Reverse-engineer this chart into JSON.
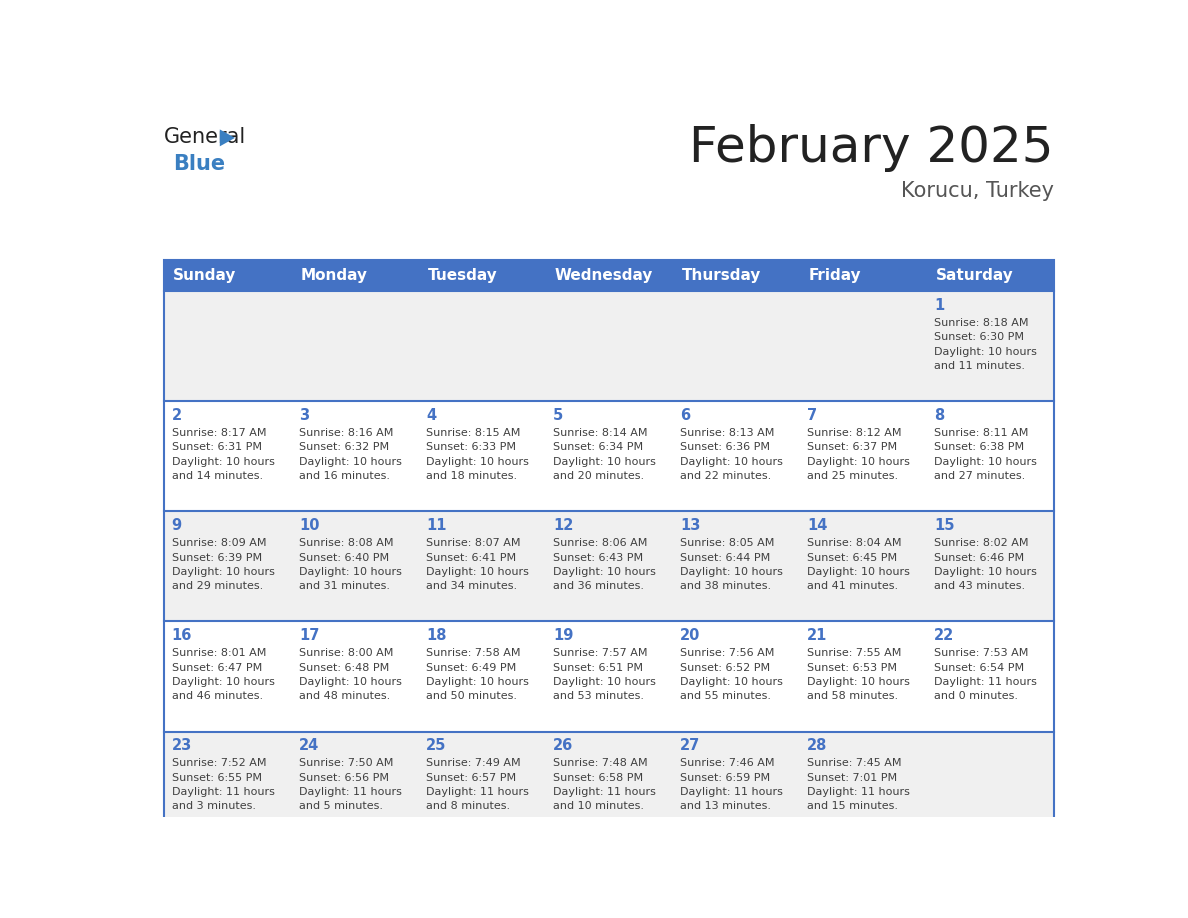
{
  "title": "February 2025",
  "subtitle": "Korucu, Turkey",
  "days_of_week": [
    "Sunday",
    "Monday",
    "Tuesday",
    "Wednesday",
    "Thursday",
    "Friday",
    "Saturday"
  ],
  "header_bg": "#4472C4",
  "header_text": "#FFFFFF",
  "row_bg_odd": "#F0F0F0",
  "row_bg_even": "#FFFFFF",
  "cell_border": "#4472C4",
  "day_num_color": "#4472C4",
  "text_color": "#404040",
  "title_color": "#222222",
  "subtitle_color": "#555555",
  "calendar_data": [
    {
      "day": 1,
      "col": 6,
      "row": 0,
      "sunrise": "8:18 AM",
      "sunset": "6:30 PM",
      "daylight": "10 hours and 11 minutes."
    },
    {
      "day": 2,
      "col": 0,
      "row": 1,
      "sunrise": "8:17 AM",
      "sunset": "6:31 PM",
      "daylight": "10 hours and 14 minutes."
    },
    {
      "day": 3,
      "col": 1,
      "row": 1,
      "sunrise": "8:16 AM",
      "sunset": "6:32 PM",
      "daylight": "10 hours and 16 minutes."
    },
    {
      "day": 4,
      "col": 2,
      "row": 1,
      "sunrise": "8:15 AM",
      "sunset": "6:33 PM",
      "daylight": "10 hours and 18 minutes."
    },
    {
      "day": 5,
      "col": 3,
      "row": 1,
      "sunrise": "8:14 AM",
      "sunset": "6:34 PM",
      "daylight": "10 hours and 20 minutes."
    },
    {
      "day": 6,
      "col": 4,
      "row": 1,
      "sunrise": "8:13 AM",
      "sunset": "6:36 PM",
      "daylight": "10 hours and 22 minutes."
    },
    {
      "day": 7,
      "col": 5,
      "row": 1,
      "sunrise": "8:12 AM",
      "sunset": "6:37 PM",
      "daylight": "10 hours and 25 minutes."
    },
    {
      "day": 8,
      "col": 6,
      "row": 1,
      "sunrise": "8:11 AM",
      "sunset": "6:38 PM",
      "daylight": "10 hours and 27 minutes."
    },
    {
      "day": 9,
      "col": 0,
      "row": 2,
      "sunrise": "8:09 AM",
      "sunset": "6:39 PM",
      "daylight": "10 hours and 29 minutes."
    },
    {
      "day": 10,
      "col": 1,
      "row": 2,
      "sunrise": "8:08 AM",
      "sunset": "6:40 PM",
      "daylight": "10 hours and 31 minutes."
    },
    {
      "day": 11,
      "col": 2,
      "row": 2,
      "sunrise": "8:07 AM",
      "sunset": "6:41 PM",
      "daylight": "10 hours and 34 minutes."
    },
    {
      "day": 12,
      "col": 3,
      "row": 2,
      "sunrise": "8:06 AM",
      "sunset": "6:43 PM",
      "daylight": "10 hours and 36 minutes."
    },
    {
      "day": 13,
      "col": 4,
      "row": 2,
      "sunrise": "8:05 AM",
      "sunset": "6:44 PM",
      "daylight": "10 hours and 38 minutes."
    },
    {
      "day": 14,
      "col": 5,
      "row": 2,
      "sunrise": "8:04 AM",
      "sunset": "6:45 PM",
      "daylight": "10 hours and 41 minutes."
    },
    {
      "day": 15,
      "col": 6,
      "row": 2,
      "sunrise": "8:02 AM",
      "sunset": "6:46 PM",
      "daylight": "10 hours and 43 minutes."
    },
    {
      "day": 16,
      "col": 0,
      "row": 3,
      "sunrise": "8:01 AM",
      "sunset": "6:47 PM",
      "daylight": "10 hours and 46 minutes."
    },
    {
      "day": 17,
      "col": 1,
      "row": 3,
      "sunrise": "8:00 AM",
      "sunset": "6:48 PM",
      "daylight": "10 hours and 48 minutes."
    },
    {
      "day": 18,
      "col": 2,
      "row": 3,
      "sunrise": "7:58 AM",
      "sunset": "6:49 PM",
      "daylight": "10 hours and 50 minutes."
    },
    {
      "day": 19,
      "col": 3,
      "row": 3,
      "sunrise": "7:57 AM",
      "sunset": "6:51 PM",
      "daylight": "10 hours and 53 minutes."
    },
    {
      "day": 20,
      "col": 4,
      "row": 3,
      "sunrise": "7:56 AM",
      "sunset": "6:52 PM",
      "daylight": "10 hours and 55 minutes."
    },
    {
      "day": 21,
      "col": 5,
      "row": 3,
      "sunrise": "7:55 AM",
      "sunset": "6:53 PM",
      "daylight": "10 hours and 58 minutes."
    },
    {
      "day": 22,
      "col": 6,
      "row": 3,
      "sunrise": "7:53 AM",
      "sunset": "6:54 PM",
      "daylight": "11 hours and 0 minutes."
    },
    {
      "day": 23,
      "col": 0,
      "row": 4,
      "sunrise": "7:52 AM",
      "sunset": "6:55 PM",
      "daylight": "11 hours and 3 minutes."
    },
    {
      "day": 24,
      "col": 1,
      "row": 4,
      "sunrise": "7:50 AM",
      "sunset": "6:56 PM",
      "daylight": "11 hours and 5 minutes."
    },
    {
      "day": 25,
      "col": 2,
      "row": 4,
      "sunrise": "7:49 AM",
      "sunset": "6:57 PM",
      "daylight": "11 hours and 8 minutes."
    },
    {
      "day": 26,
      "col": 3,
      "row": 4,
      "sunrise": "7:48 AM",
      "sunset": "6:58 PM",
      "daylight": "11 hours and 10 minutes."
    },
    {
      "day": 27,
      "col": 4,
      "row": 4,
      "sunrise": "7:46 AM",
      "sunset": "6:59 PM",
      "daylight": "11 hours and 13 minutes."
    },
    {
      "day": 28,
      "col": 5,
      "row": 4,
      "sunrise": "7:45 AM",
      "sunset": "7:01 PM",
      "daylight": "11 hours and 15 minutes."
    }
  ],
  "num_rows": 5,
  "logo_general_color": "#222222",
  "logo_blue_color": "#3A7FC1"
}
